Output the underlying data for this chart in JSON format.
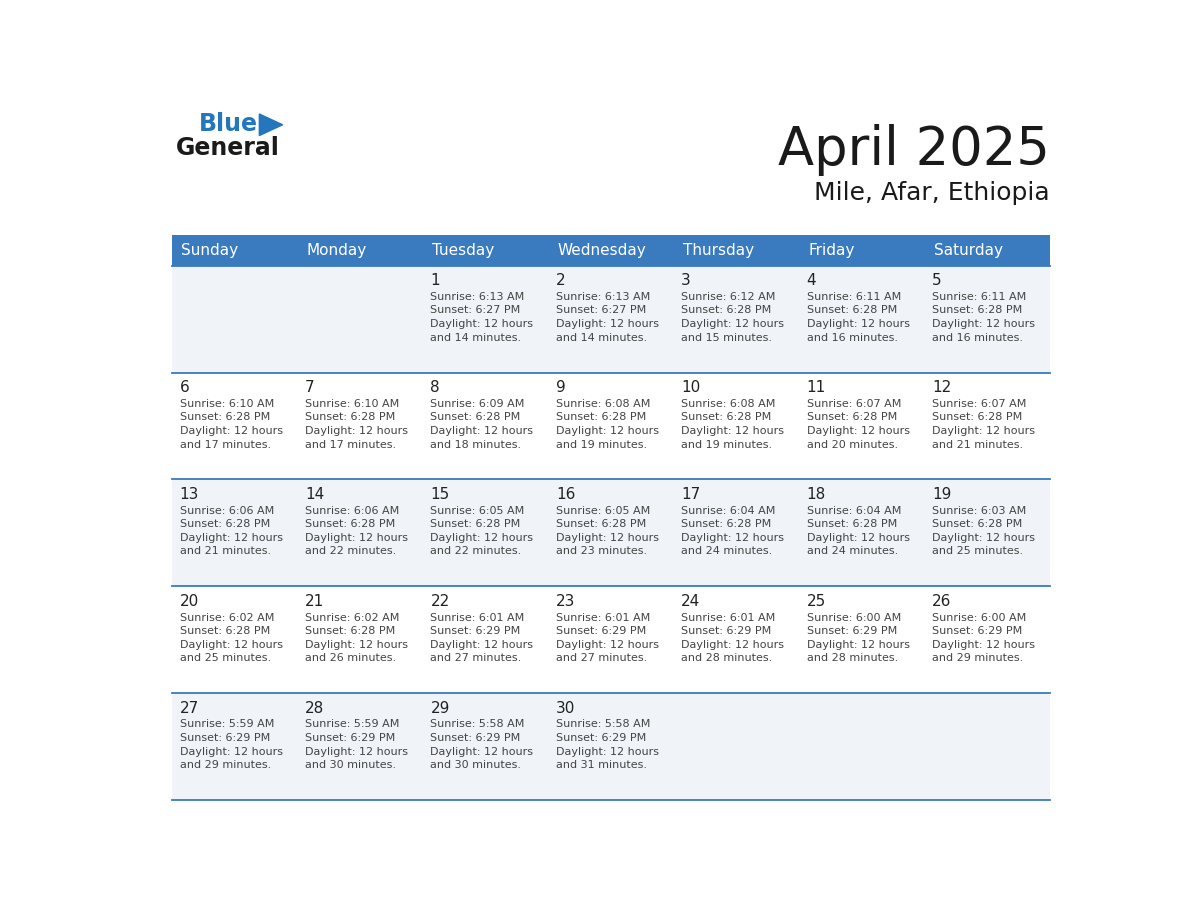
{
  "title": "April 2025",
  "subtitle": "Mile, Afar, Ethiopia",
  "header_color": "#3a7bbf",
  "header_text_color": "#ffffff",
  "cell_bg_even": "#f0f4f8",
  "cell_bg_odd": "#ffffff",
  "border_color": "#3a7bbf",
  "text_color": "#222222",
  "info_color": "#444444",
  "days_of_week": [
    "Sunday",
    "Monday",
    "Tuesday",
    "Wednesday",
    "Thursday",
    "Friday",
    "Saturday"
  ],
  "weeks": [
    [
      {
        "day": "",
        "info": ""
      },
      {
        "day": "",
        "info": ""
      },
      {
        "day": "1",
        "info": "Sunrise: 6:13 AM\nSunset: 6:27 PM\nDaylight: 12 hours\nand 14 minutes."
      },
      {
        "day": "2",
        "info": "Sunrise: 6:13 AM\nSunset: 6:27 PM\nDaylight: 12 hours\nand 14 minutes."
      },
      {
        "day": "3",
        "info": "Sunrise: 6:12 AM\nSunset: 6:28 PM\nDaylight: 12 hours\nand 15 minutes."
      },
      {
        "day": "4",
        "info": "Sunrise: 6:11 AM\nSunset: 6:28 PM\nDaylight: 12 hours\nand 16 minutes."
      },
      {
        "day": "5",
        "info": "Sunrise: 6:11 AM\nSunset: 6:28 PM\nDaylight: 12 hours\nand 16 minutes."
      }
    ],
    [
      {
        "day": "6",
        "info": "Sunrise: 6:10 AM\nSunset: 6:28 PM\nDaylight: 12 hours\nand 17 minutes."
      },
      {
        "day": "7",
        "info": "Sunrise: 6:10 AM\nSunset: 6:28 PM\nDaylight: 12 hours\nand 17 minutes."
      },
      {
        "day": "8",
        "info": "Sunrise: 6:09 AM\nSunset: 6:28 PM\nDaylight: 12 hours\nand 18 minutes."
      },
      {
        "day": "9",
        "info": "Sunrise: 6:08 AM\nSunset: 6:28 PM\nDaylight: 12 hours\nand 19 minutes."
      },
      {
        "day": "10",
        "info": "Sunrise: 6:08 AM\nSunset: 6:28 PM\nDaylight: 12 hours\nand 19 minutes."
      },
      {
        "day": "11",
        "info": "Sunrise: 6:07 AM\nSunset: 6:28 PM\nDaylight: 12 hours\nand 20 minutes."
      },
      {
        "day": "12",
        "info": "Sunrise: 6:07 AM\nSunset: 6:28 PM\nDaylight: 12 hours\nand 21 minutes."
      }
    ],
    [
      {
        "day": "13",
        "info": "Sunrise: 6:06 AM\nSunset: 6:28 PM\nDaylight: 12 hours\nand 21 minutes."
      },
      {
        "day": "14",
        "info": "Sunrise: 6:06 AM\nSunset: 6:28 PM\nDaylight: 12 hours\nand 22 minutes."
      },
      {
        "day": "15",
        "info": "Sunrise: 6:05 AM\nSunset: 6:28 PM\nDaylight: 12 hours\nand 22 minutes."
      },
      {
        "day": "16",
        "info": "Sunrise: 6:05 AM\nSunset: 6:28 PM\nDaylight: 12 hours\nand 23 minutes."
      },
      {
        "day": "17",
        "info": "Sunrise: 6:04 AM\nSunset: 6:28 PM\nDaylight: 12 hours\nand 24 minutes."
      },
      {
        "day": "18",
        "info": "Sunrise: 6:04 AM\nSunset: 6:28 PM\nDaylight: 12 hours\nand 24 minutes."
      },
      {
        "day": "19",
        "info": "Sunrise: 6:03 AM\nSunset: 6:28 PM\nDaylight: 12 hours\nand 25 minutes."
      }
    ],
    [
      {
        "day": "20",
        "info": "Sunrise: 6:02 AM\nSunset: 6:28 PM\nDaylight: 12 hours\nand 25 minutes."
      },
      {
        "day": "21",
        "info": "Sunrise: 6:02 AM\nSunset: 6:28 PM\nDaylight: 12 hours\nand 26 minutes."
      },
      {
        "day": "22",
        "info": "Sunrise: 6:01 AM\nSunset: 6:29 PM\nDaylight: 12 hours\nand 27 minutes."
      },
      {
        "day": "23",
        "info": "Sunrise: 6:01 AM\nSunset: 6:29 PM\nDaylight: 12 hours\nand 27 minutes."
      },
      {
        "day": "24",
        "info": "Sunrise: 6:01 AM\nSunset: 6:29 PM\nDaylight: 12 hours\nand 28 minutes."
      },
      {
        "day": "25",
        "info": "Sunrise: 6:00 AM\nSunset: 6:29 PM\nDaylight: 12 hours\nand 28 minutes."
      },
      {
        "day": "26",
        "info": "Sunrise: 6:00 AM\nSunset: 6:29 PM\nDaylight: 12 hours\nand 29 minutes."
      }
    ],
    [
      {
        "day": "27",
        "info": "Sunrise: 5:59 AM\nSunset: 6:29 PM\nDaylight: 12 hours\nand 29 minutes."
      },
      {
        "day": "28",
        "info": "Sunrise: 5:59 AM\nSunset: 6:29 PM\nDaylight: 12 hours\nand 30 minutes."
      },
      {
        "day": "29",
        "info": "Sunrise: 5:58 AM\nSunset: 6:29 PM\nDaylight: 12 hours\nand 30 minutes."
      },
      {
        "day": "30",
        "info": "Sunrise: 5:58 AM\nSunset: 6:29 PM\nDaylight: 12 hours\nand 31 minutes."
      },
      {
        "day": "",
        "info": ""
      },
      {
        "day": "",
        "info": ""
      },
      {
        "day": "",
        "info": ""
      }
    ]
  ],
  "logo_color_general": "#1a1a1a",
  "logo_color_blue": "#2477bc",
  "logo_triangle_color": "#2477bc",
  "title_fontsize": 38,
  "subtitle_fontsize": 18,
  "header_fontsize": 11,
  "day_num_fontsize": 11,
  "info_fontsize": 8
}
